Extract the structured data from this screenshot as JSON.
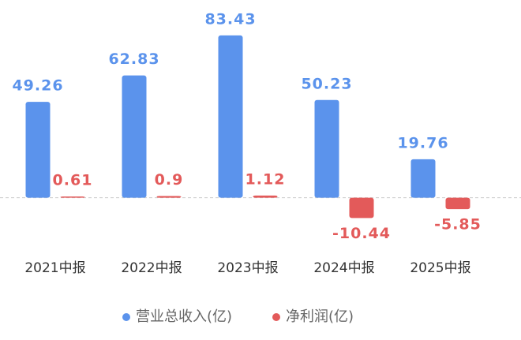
{
  "chart_data": {
    "type": "bar",
    "categories": [
      "2021中报",
      "2022中报",
      "2023中报",
      "2024中报",
      "2025中报"
    ],
    "series": [
      {
        "name": "营业总收入(亿)",
        "color": "#5b93ec",
        "values": [
          49.26,
          62.83,
          83.43,
          50.23,
          19.76
        ]
      },
      {
        "name": "净利润(亿)",
        "color": "#e35a5a",
        "values": [
          0.61,
          0.9,
          1.12,
          -10.44,
          -5.85
        ]
      }
    ],
    "ylim": [
      -20,
      100
    ],
    "grid": false,
    "legend": "bottom"
  }
}
